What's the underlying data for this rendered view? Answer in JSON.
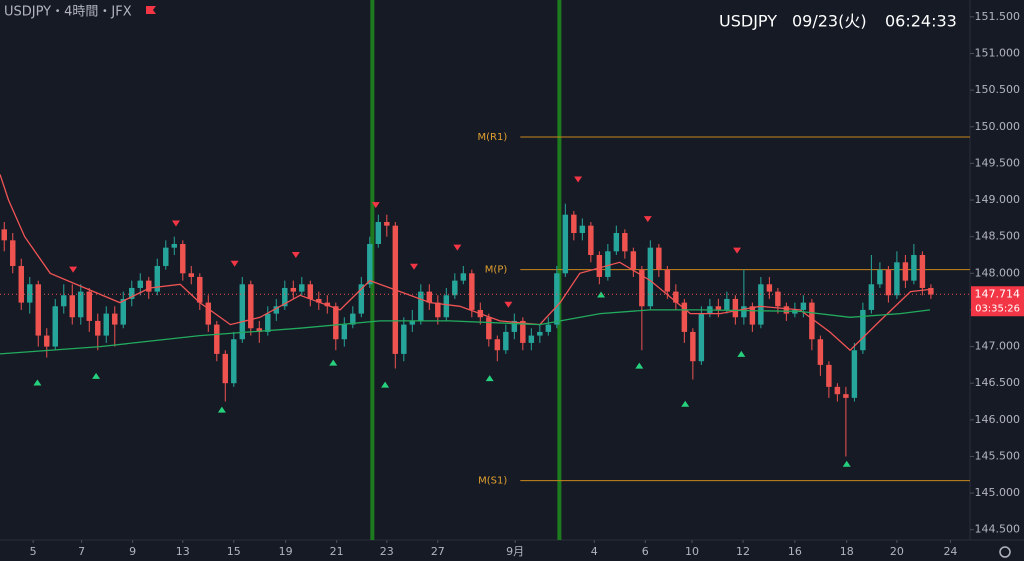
{
  "chart_data": {
    "type": "candlestick",
    "title": "USDJPY・4時間・JFX",
    "symbol": "USDJPY",
    "date": "09/23(火)",
    "time": "06:24:33",
    "up_color": "#26a69a",
    "down_color": "#ef5350",
    "xlim": [
      0,
      114.1
    ],
    "ylim": [
      144.36,
      151.73
    ],
    "yticks": [
      {
        "value": 144.5,
        "label": "144.500"
      },
      {
        "value": 145,
        "label": "145.000"
      },
      {
        "value": 145.5,
        "label": "145.500"
      },
      {
        "value": 146,
        "label": "146.000"
      },
      {
        "value": 146.5,
        "label": "146.500"
      },
      {
        "value": 147,
        "label": "147.000"
      },
      {
        "value": 147.5,
        "label": "147.500"
      },
      {
        "value": 148,
        "label": "148.000"
      },
      {
        "value": 148.5,
        "label": "148.500"
      },
      {
        "value": 149,
        "label": "149.000"
      },
      {
        "value": 149.5,
        "label": "149.500"
      },
      {
        "value": 150,
        "label": "150.000"
      },
      {
        "value": 150.5,
        "label": "150.500"
      },
      {
        "value": 151,
        "label": "151.000"
      },
      {
        "value": 151.5,
        "label": "151.500"
      }
    ],
    "xticks": [
      {
        "value": 3.9,
        "label": "5"
      },
      {
        "value": 9.6,
        "label": "7"
      },
      {
        "value": 15.6,
        "label": "9"
      },
      {
        "value": 21.5,
        "label": "13"
      },
      {
        "value": 27.5,
        "label": "15"
      },
      {
        "value": 33.6,
        "label": "19"
      },
      {
        "value": 39.6,
        "label": "21"
      },
      {
        "value": 45.5,
        "label": "23"
      },
      {
        "value": 51.5,
        "label": "27"
      },
      {
        "value": 60.6,
        "label": "9月"
      },
      {
        "value": 69.9,
        "label": "4"
      },
      {
        "value": 75.9,
        "label": "6"
      },
      {
        "value": 81.4,
        "label": "10"
      },
      {
        "value": 87.4,
        "label": "12"
      },
      {
        "value": 93.5,
        "label": "16"
      },
      {
        "value": 99.6,
        "label": "18"
      },
      {
        "value": 105.5,
        "label": "20"
      },
      {
        "value": 111.8,
        "label": "24"
      }
    ],
    "candles": [
      [
        148.6,
        148.7,
        148.3,
        148.45
      ],
      [
        148.45,
        148.55,
        148.0,
        148.1
      ],
      [
        148.1,
        148.2,
        147.5,
        147.6
      ],
      [
        147.6,
        147.95,
        147.45,
        147.85
      ],
      [
        147.85,
        147.9,
        147.0,
        147.15
      ],
      [
        147.15,
        147.25,
        146.85,
        147.0
      ],
      [
        147.0,
        147.65,
        146.95,
        147.55
      ],
      [
        147.55,
        147.85,
        147.45,
        147.7
      ],
      [
        147.7,
        147.85,
        147.3,
        147.4
      ],
      [
        147.4,
        147.85,
        147.3,
        147.75
      ],
      [
        147.75,
        147.8,
        147.2,
        147.35
      ],
      [
        147.35,
        147.45,
        146.95,
        147.15
      ],
      [
        147.15,
        147.55,
        147.05,
        147.45
      ],
      [
        147.45,
        147.55,
        147.0,
        147.3
      ],
      [
        147.3,
        147.75,
        147.25,
        147.65
      ],
      [
        147.65,
        147.9,
        147.55,
        147.8
      ],
      [
        147.8,
        148.0,
        147.7,
        147.9
      ],
      [
        147.9,
        147.95,
        147.65,
        147.75
      ],
      [
        147.75,
        148.2,
        147.7,
        148.1
      ],
      [
        148.1,
        148.45,
        148.05,
        148.35
      ],
      [
        148.35,
        148.5,
        148.25,
        148.4
      ],
      [
        148.4,
        148.45,
        147.9,
        148.0
      ],
      [
        148.0,
        148.1,
        147.85,
        147.95
      ],
      [
        147.95,
        148.0,
        147.5,
        147.6
      ],
      [
        147.6,
        147.7,
        147.2,
        147.3
      ],
      [
        147.3,
        147.35,
        146.8,
        146.9
      ],
      [
        146.9,
        146.95,
        146.25,
        146.5
      ],
      [
        146.5,
        147.2,
        146.45,
        147.1
      ],
      [
        147.1,
        147.95,
        147.05,
        147.85
      ],
      [
        147.85,
        147.9,
        147.15,
        147.25
      ],
      [
        147.25,
        147.35,
        147.05,
        147.2
      ],
      [
        147.2,
        147.55,
        147.15,
        147.45
      ],
      [
        147.45,
        147.65,
        147.35,
        147.55
      ],
      [
        147.55,
        147.9,
        147.5,
        147.8
      ],
      [
        147.8,
        147.9,
        147.65,
        147.75
      ],
      [
        147.75,
        147.95,
        147.7,
        147.85
      ],
      [
        147.85,
        147.9,
        147.55,
        147.65
      ],
      [
        147.65,
        147.75,
        147.5,
        147.6
      ],
      [
        147.6,
        147.7,
        147.45,
        147.55
      ],
      [
        147.55,
        147.6,
        146.95,
        147.1
      ],
      [
        147.1,
        147.4,
        147.0,
        147.3
      ],
      [
        147.3,
        147.55,
        147.25,
        147.45
      ],
      [
        147.45,
        147.95,
        147.4,
        147.85
      ],
      [
        147.85,
        148.5,
        147.8,
        148.4
      ],
      [
        148.4,
        148.8,
        148.35,
        148.7
      ],
      [
        148.7,
        148.8,
        148.5,
        148.65
      ],
      [
        148.65,
        148.7,
        146.7,
        146.9
      ],
      [
        146.9,
        147.4,
        146.8,
        147.3
      ],
      [
        147.3,
        147.5,
        147.2,
        147.35
      ],
      [
        147.35,
        147.85,
        147.3,
        147.75
      ],
      [
        147.75,
        147.85,
        147.5,
        147.6
      ],
      [
        147.6,
        147.7,
        147.3,
        147.4
      ],
      [
        147.4,
        147.8,
        147.35,
        147.7
      ],
      [
        147.7,
        148.0,
        147.65,
        147.9
      ],
      [
        147.9,
        148.1,
        147.85,
        148.0
      ],
      [
        148.0,
        148.05,
        147.4,
        147.5
      ],
      [
        147.5,
        147.6,
        147.3,
        147.4
      ],
      [
        147.4,
        147.45,
        147.0,
        147.1
      ],
      [
        147.1,
        147.15,
        146.8,
        146.95
      ],
      [
        146.95,
        147.3,
        146.9,
        147.2
      ],
      [
        147.2,
        147.45,
        147.1,
        147.35
      ],
      [
        147.35,
        147.4,
        146.95,
        147.05
      ],
      [
        147.05,
        147.25,
        146.95,
        147.15
      ],
      [
        147.15,
        147.3,
        147.05,
        147.2
      ],
      [
        147.2,
        147.4,
        147.15,
        147.3
      ],
      [
        147.3,
        148.1,
        147.25,
        148.0
      ],
      [
        148.0,
        148.95,
        147.95,
        148.8
      ],
      [
        148.8,
        148.85,
        148.45,
        148.55
      ],
      [
        148.55,
        148.75,
        148.45,
        148.65
      ],
      [
        148.65,
        148.7,
        148.15,
        148.25
      ],
      [
        148.25,
        148.3,
        147.85,
        147.95
      ],
      [
        147.95,
        148.4,
        147.9,
        148.3
      ],
      [
        148.3,
        148.65,
        148.25,
        148.55
      ],
      [
        148.55,
        148.6,
        148.2,
        148.3
      ],
      [
        148.3,
        148.35,
        147.95,
        148.05
      ],
      [
        148.05,
        148.1,
        146.95,
        147.55
      ],
      [
        147.55,
        148.45,
        147.5,
        148.35
      ],
      [
        148.35,
        148.4,
        147.95,
        148.05
      ],
      [
        148.05,
        148.1,
        147.65,
        147.75
      ],
      [
        147.75,
        147.85,
        147.5,
        147.6
      ],
      [
        147.6,
        147.65,
        147.05,
        147.2
      ],
      [
        147.2,
        147.25,
        146.55,
        146.8
      ],
      [
        146.8,
        147.55,
        146.75,
        147.45
      ],
      [
        147.45,
        147.65,
        147.4,
        147.55
      ],
      [
        147.55,
        147.65,
        147.4,
        147.5
      ],
      [
        147.5,
        147.75,
        147.45,
        147.65
      ],
      [
        147.65,
        147.7,
        147.3,
        147.4
      ],
      [
        147.4,
        148.05,
        147.3,
        147.55
      ],
      [
        147.55,
        147.6,
        147.2,
        147.3
      ],
      [
        147.3,
        147.95,
        147.25,
        147.85
      ],
      [
        147.85,
        147.95,
        147.65,
        147.75
      ],
      [
        147.75,
        147.8,
        147.45,
        147.55
      ],
      [
        147.55,
        147.6,
        147.35,
        147.45
      ],
      [
        147.45,
        147.6,
        147.4,
        147.5
      ],
      [
        147.5,
        147.7,
        147.4,
        147.6
      ],
      [
        147.6,
        147.65,
        146.95,
        147.1
      ],
      [
        147.1,
        147.15,
        146.6,
        146.75
      ],
      [
        146.75,
        146.8,
        146.3,
        146.45
      ],
      [
        146.45,
        146.5,
        146.25,
        146.35
      ],
      [
        146.35,
        146.45,
        145.5,
        146.3
      ],
      [
        146.3,
        147.05,
        146.25,
        146.95
      ],
      [
        146.95,
        147.6,
        146.9,
        147.5
      ],
      [
        147.5,
        148.25,
        147.45,
        147.85
      ],
      [
        147.85,
        148.15,
        147.8,
        148.05
      ],
      [
        148.05,
        148.1,
        147.6,
        147.7
      ],
      [
        147.7,
        148.3,
        147.65,
        148.15
      ],
      [
        148.15,
        148.25,
        147.8,
        147.9
      ],
      [
        147.9,
        148.4,
        147.85,
        148.25
      ],
      [
        148.25,
        148.3,
        147.7,
        147.8
      ],
      [
        147.8,
        147.85,
        147.65,
        147.71
      ]
    ],
    "ma": [
      {
        "color": "#f05454",
        "x": [
          0,
          1,
          2.9,
          5.9,
          10,
          14.1,
          17.6,
          21.2,
          23.5,
          27.1,
          30.6,
          35.3,
          40,
          43.5,
          45.9,
          50.6,
          54.1,
          58.8,
          63.5,
          65.9,
          68.2,
          72.9,
          76.5,
          81.2,
          84.7,
          89.4,
          94.1,
          97.6,
          100,
          103.5,
          107.1,
          109.4
        ],
        "values": [
          149.35,
          149.0,
          148.5,
          148.0,
          147.8,
          147.6,
          147.8,
          147.85,
          147.6,
          147.3,
          147.4,
          147.7,
          147.5,
          147.9,
          147.8,
          147.6,
          147.55,
          147.35,
          147.3,
          147.6,
          148.0,
          148.15,
          147.9,
          147.45,
          147.45,
          147.55,
          147.5,
          147.2,
          146.95,
          147.35,
          147.75,
          147.78
        ]
      },
      {
        "color": "#22ab5e",
        "x": [
          0,
          11.8,
          23.5,
          35.3,
          44.7,
          52.9,
          63.5,
          70.6,
          76.5,
          82.4,
          94.1,
          100,
          105.9,
          109.4
        ],
        "values": [
          146.9,
          147.0,
          147.15,
          147.25,
          147.35,
          147.35,
          147.3,
          147.45,
          147.5,
          147.5,
          147.48,
          147.4,
          147.45,
          147.5
        ]
      }
    ],
    "signals_down": {
      "color": "#f23645",
      "x": [
        8.6,
        20.7,
        27.6,
        34.8,
        44.2,
        48.7,
        53.8,
        59.8,
        68.0,
        76.2,
        86.7
      ],
      "values": [
        148.05,
        148.68,
        148.13,
        148.25,
        148.93,
        148.09,
        148.35,
        147.57,
        149.28,
        148.74,
        148.31
      ]
    },
    "signals_up": {
      "color": "#26d07c",
      "x": [
        4.4,
        11.3,
        26.1,
        39.2,
        45.3,
        57.6,
        70.7,
        75.2,
        80.6,
        87.2,
        99.6
      ],
      "values": [
        146.51,
        146.6,
        146.14,
        146.78,
        146.48,
        146.57,
        147.71,
        146.74,
        146.22,
        146.9,
        145.4
      ]
    },
    "session_lines": [
      43.8,
      65.8
    ],
    "pivot_start": 61.2,
    "pivots": [
      {
        "name": "M(R1)",
        "value": 149.86
      },
      {
        "name": "M(P)",
        "value": 148.05
      },
      {
        "name": "M(S1)",
        "value": 145.17
      }
    ],
    "last_price": 147.714,
    "countdown": "03:35:26"
  }
}
